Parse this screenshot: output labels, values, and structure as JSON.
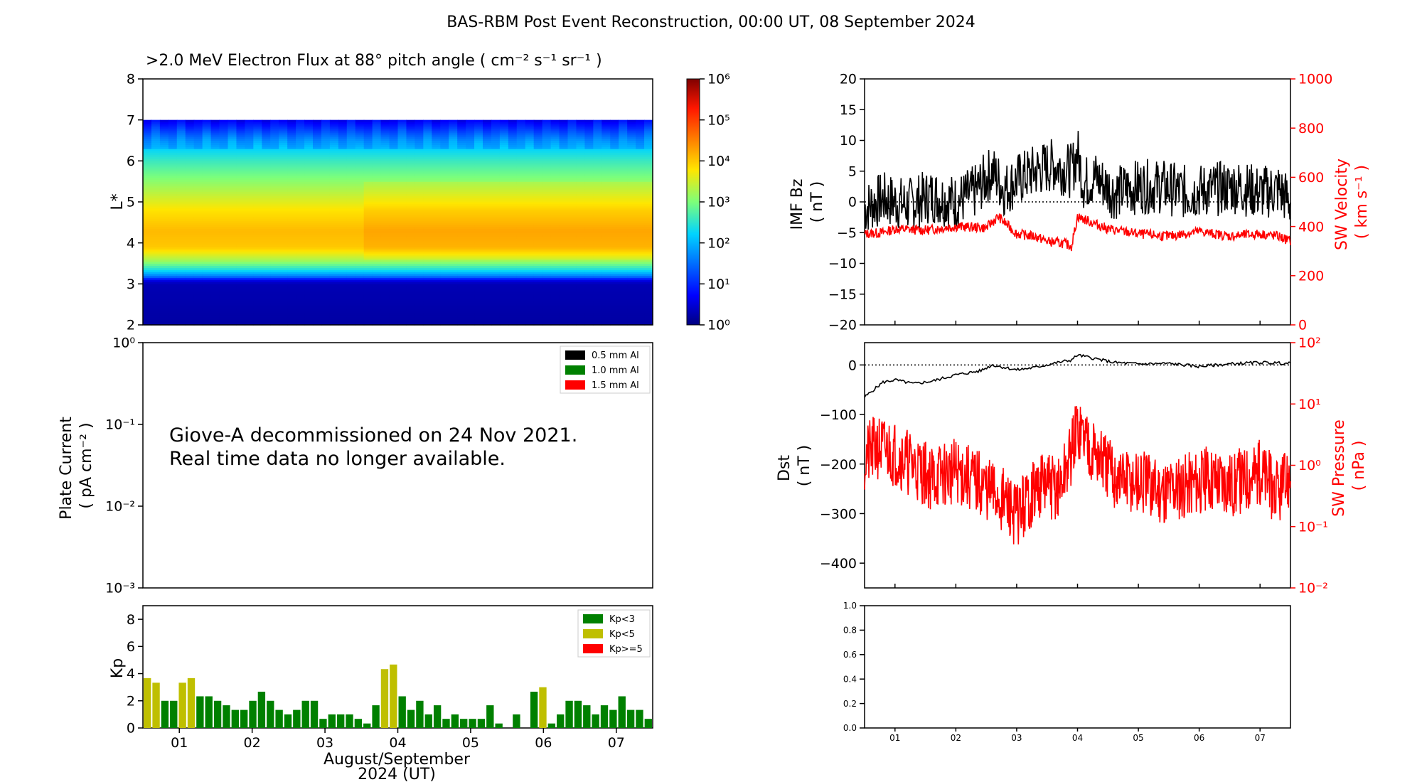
{
  "figure_title": "BAS-RBM Post Event Reconstruction, 00:00 UT, 08 September 2024",
  "colors": {
    "red": "#ff0000",
    "green": "#008000",
    "olive": "#bfbf00",
    "black": "#000000"
  },
  "chart_data": [
    {
      "id": "flux",
      "type": "heatmap",
      "title": ">2.0 MeV Electron Flux at 88° pitch angle ( cm⁻² s⁻¹ sr⁻¹ )",
      "ylabel": "L*",
      "yticks": [
        "2",
        "3",
        "4",
        "5",
        "6",
        "7",
        "8"
      ],
      "ylim": [
        2,
        8
      ],
      "colorbar": {
        "ticks": [
          "10⁰",
          "10¹",
          "10²",
          "10³",
          "10⁴",
          "10⁵",
          "10⁶"
        ],
        "range_log10": [
          0,
          6
        ]
      },
      "profile": [
        {
          "L": 2.0,
          "log10_flux": 0.2
        },
        {
          "L": 3.0,
          "log10_flux": 0.3
        },
        {
          "L": 3.1,
          "log10_flux": 0.6
        },
        {
          "L": 3.15,
          "log10_flux": 1.2
        },
        {
          "L": 3.2,
          "log10_flux": 1.6
        },
        {
          "L": 3.35,
          "log10_flux": 2.4
        },
        {
          "L": 3.6,
          "log10_flux": 3.3
        },
        {
          "L": 3.9,
          "log10_flux": 4.0
        },
        {
          "L": 4.3,
          "log10_flux": 4.1
        },
        {
          "L": 4.8,
          "log10_flux": 3.8
        },
        {
          "L": 5.5,
          "log10_flux": 3.1
        },
        {
          "L": 6.0,
          "log10_flux": 2.6
        },
        {
          "L": 6.5,
          "log10_flux": 2.0
        },
        {
          "L": 7.0,
          "log10_flux": 0.9
        }
      ],
      "enhanced_after_day": 3.45
    },
    {
      "id": "plate",
      "type": "line",
      "ylabel": "Plate Current\n( pA cm⁻² )",
      "yticks": [
        "10⁰",
        "10⁻¹",
        "10⁻²",
        "10⁻³"
      ],
      "legend": [
        "0.5 mm Al",
        "1.0 mm Al",
        "1.5 mm Al"
      ],
      "legend_position": "top-right",
      "note": [
        "Giove-A decommissioned on 24 Nov 2021.",
        "Real time data no longer available."
      ]
    },
    {
      "id": "kp",
      "type": "bar",
      "ylabel": "Kp",
      "yticks": [
        "0",
        "2",
        "4",
        "6",
        "8"
      ],
      "ylim": [
        0,
        9
      ],
      "xticks": [
        "01",
        "02",
        "03",
        "04",
        "05",
        "06",
        "07"
      ],
      "xlabel": "August/September",
      "xlabel2": "2024 (UT)",
      "legend": [
        "Kp<3",
        "Kp<5",
        "Kp>=5"
      ],
      "legend_position": "top-right",
      "values": [
        3.67,
        3.33,
        2.0,
        2.0,
        3.33,
        3.67,
        2.33,
        2.33,
        2.0,
        1.67,
        1.33,
        1.33,
        2.0,
        2.67,
        2.0,
        1.33,
        1.0,
        1.33,
        2.0,
        2.0,
        0.67,
        1.0,
        1.0,
        1.0,
        0.67,
        0.33,
        1.67,
        4.33,
        4.67,
        2.33,
        1.33,
        2.0,
        1.0,
        1.67,
        0.67,
        1.0,
        0.67,
        0.67,
        0.67,
        1.67,
        0.33,
        0.0,
        1.0,
        0.0,
        2.67,
        3.0,
        0.33,
        1.0,
        2.0,
        2.0,
        1.67,
        1.0,
        1.67,
        1.33,
        2.33,
        1.33,
        1.33,
        0.67
      ]
    },
    {
      "id": "imf",
      "type": "line",
      "ylabel": "IMF Bz\n( nT )",
      "ylabel_right": "SW Velocity\n( km s⁻¹ )",
      "yticks": [
        "20",
        "15",
        "10",
        "5",
        "0",
        "−5",
        "−10",
        "−15",
        "−20"
      ],
      "ylim": [
        -20,
        20
      ],
      "yticks_right": [
        "1000",
        "800",
        "600",
        "400",
        "200",
        "0"
      ],
      "ylim_right": [
        0,
        1000
      ],
      "series": [
        {
          "axis": "left",
          "x": [
            0.5,
            0.8,
            1.2,
            1.6,
            2.0,
            2.3,
            2.6,
            2.8,
            3.0,
            3.3,
            3.6,
            3.9,
            4.0,
            4.1,
            4.3,
            4.6,
            5.0,
            5.4,
            5.8,
            6.2,
            6.6,
            7.0,
            7.3,
            7.5
          ],
          "values": [
            -1,
            0.5,
            -0.5,
            1,
            0,
            1.5,
            5,
            2,
            3.5,
            5,
            6,
            5,
            8,
            3,
            4,
            1.5,
            2.5,
            2.5,
            1.5,
            2,
            2.5,
            1.5,
            2,
            0
          ]
        },
        {
          "axis": "right",
          "x": [
            0.5,
            0.8,
            1.0,
            1.5,
            2.0,
            2.5,
            2.7,
            3.0,
            3.3,
            3.5,
            3.8,
            3.9,
            4.0,
            4.2,
            4.5,
            5.0,
            5.5,
            6.0,
            6.5,
            7.0,
            7.3,
            7.5
          ],
          "values": [
            370,
            375,
            390,
            385,
            400,
            395,
            440,
            370,
            360,
            340,
            330,
            320,
            440,
            420,
            390,
            370,
            360,
            380,
            360,
            370,
            360,
            340
          ]
        }
      ]
    },
    {
      "id": "dst",
      "type": "line",
      "ylabel": "Dst\n( nT )",
      "ylabel_right": "SW Pressure\n( nPa )",
      "yticks": [
        "0",
        "−100",
        "−200",
        "−300",
        "−400"
      ],
      "ylim": [
        -450,
        45
      ],
      "yticks_right": [
        "10²",
        "10¹",
        "10⁰",
        "10⁻¹",
        "10⁻²"
      ],
      "ylim_right_log10": [
        -2,
        2
      ],
      "series": [
        {
          "axis": "left",
          "x": [
            0.5,
            0.6,
            0.8,
            1.0,
            1.3,
            1.6,
            2.0,
            2.4,
            2.6,
            3.0,
            3.3,
            3.6,
            3.9,
            4.0,
            4.2,
            4.6,
            5.0,
            5.5,
            6.0,
            6.5,
            7.0,
            7.5
          ],
          "values": [
            -65,
            -55,
            -35,
            -30,
            -38,
            -33,
            -20,
            -12,
            0,
            -10,
            -5,
            3,
            10,
            20,
            15,
            5,
            2,
            3,
            -3,
            2,
            5,
            3
          ]
        },
        {
          "axis": "right",
          "x": [
            0.5,
            0.7,
            1.0,
            1.3,
            1.6,
            2.0,
            2.4,
            2.8,
            3.0,
            3.4,
            3.7,
            3.9,
            4.0,
            4.1,
            4.3,
            4.6,
            5.0,
            5.4,
            5.8,
            6.2,
            6.6,
            7.0,
            7.3,
            7.5
          ],
          "log10_values": [
            0.1,
            0.3,
            0.2,
            0.0,
            -0.2,
            -0.1,
            -0.3,
            -0.6,
            -0.8,
            -0.3,
            -0.4,
            0.2,
            0.6,
            0.5,
            0.2,
            -0.2,
            -0.3,
            -0.4,
            -0.3,
            -0.2,
            -0.3,
            -0.1,
            -0.5,
            -0.2
          ]
        }
      ]
    },
    {
      "id": "empty",
      "type": "line",
      "yticks": [
        "1.0",
        "0.8",
        "0.6",
        "0.4",
        "0.2",
        "0.0"
      ],
      "ylim": [
        0,
        1
      ],
      "xticks": [
        "01",
        "02",
        "03",
        "04",
        "05",
        "06",
        "07"
      ]
    }
  ]
}
